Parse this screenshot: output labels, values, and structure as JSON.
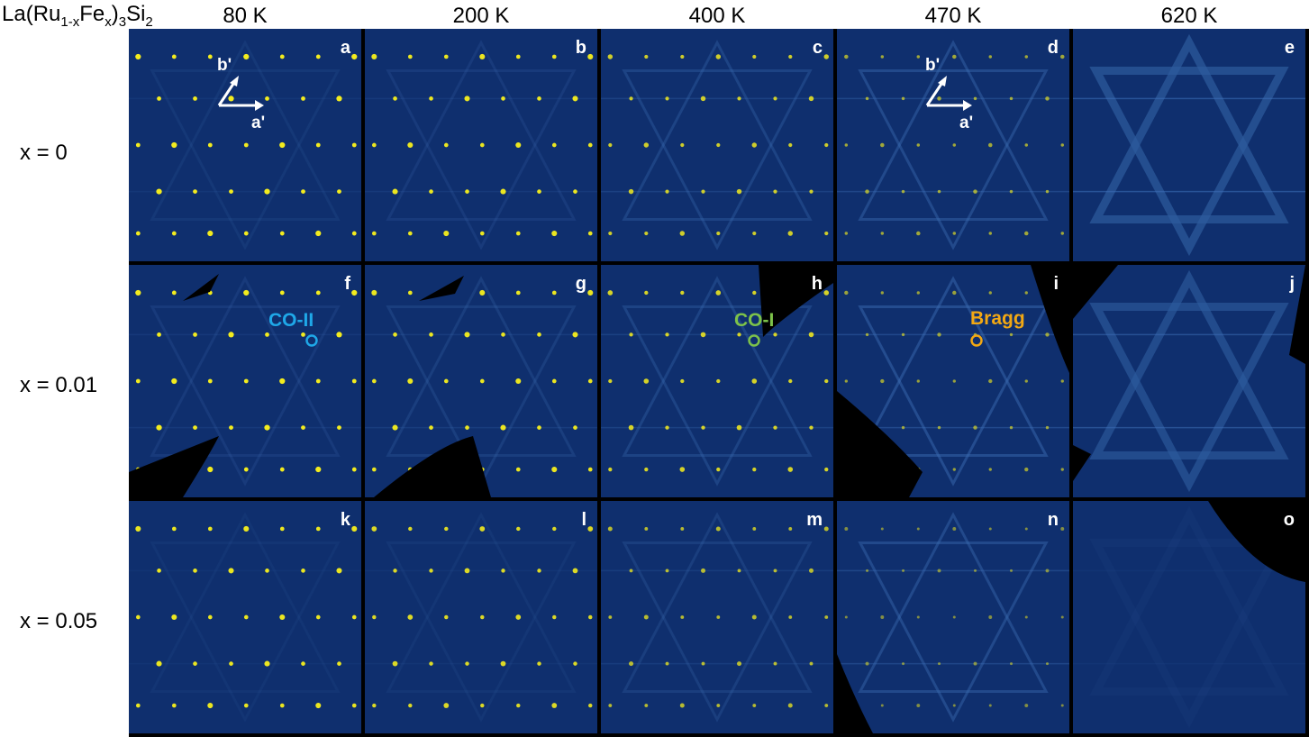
{
  "compound": {
    "base": "La(Ru",
    "sub1": "1-x",
    "mid": "Fe",
    "sub2": "x",
    "mid2": ")",
    "sub3": "3",
    "tail": "Si",
    "sub4": "2"
  },
  "temperatures": [
    "80 K",
    "200 K",
    "400 K",
    "470 K",
    "620 K"
  ],
  "rows": [
    "x = 0",
    "x = 0.01",
    "x = 0.05"
  ],
  "panel_labels": [
    "a",
    "b",
    "c",
    "d",
    "e",
    "f",
    "g",
    "h",
    "i",
    "j",
    "k",
    "l",
    "m",
    "n",
    "o"
  ],
  "axes": {
    "b": "b'",
    "a": "a'"
  },
  "annotations": {
    "co2": "CO-II",
    "co1": "CO-I",
    "bragg": "Bragg"
  },
  "colors": {
    "panel_bg": "#0f2f6e",
    "peak": "#f3ec1e",
    "co2": "#1fa8e8",
    "co1": "#7dc24a",
    "bragg": "#f2a813"
  }
}
